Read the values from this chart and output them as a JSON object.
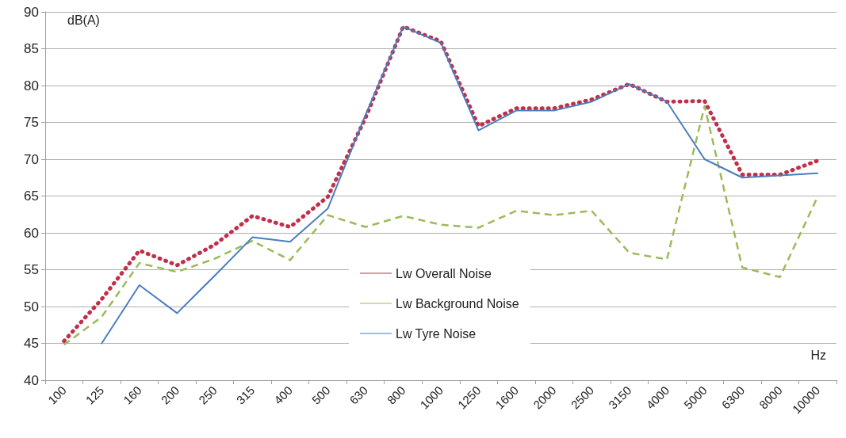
{
  "chart_data": {
    "type": "line",
    "ylabel": "dB(A)",
    "xlabel": "Hz",
    "categories": [
      "100",
      "125",
      "160",
      "200",
      "250",
      "315",
      "400",
      "500",
      "630",
      "800",
      "1000",
      "1250",
      "1600",
      "2000",
      "2500",
      "3150",
      "4000",
      "5000",
      "6300",
      "8000",
      "10000"
    ],
    "ylim": [
      40,
      90
    ],
    "yticks": [
      40,
      45,
      50,
      55,
      60,
      65,
      70,
      75,
      80,
      85,
      90
    ],
    "grid": "y",
    "legend": "bottom",
    "marker": "none",
    "series": [
      {
        "name": "Lw Overall Noise",
        "color": "#c0304a",
        "line_style": "dotted",
        "values": [
          45.3,
          51,
          57.6,
          55.6,
          58.4,
          62.3,
          60.8,
          64.9,
          75.6,
          88,
          86,
          74.5,
          76.9,
          76.9,
          78.1,
          80.2,
          77.8,
          77.9,
          67.9,
          67.9,
          69.8
        ]
      },
      {
        "name": "Lw Background Noise",
        "color": "#9bbb59",
        "line_style": "dashed",
        "values": [
          44.8,
          48.6,
          55.9,
          54.7,
          56.5,
          58.9,
          56.3,
          62.4,
          60.8,
          62.3,
          61.1,
          60.7,
          63,
          62.4,
          63,
          57.3,
          56.4,
          77.2,
          55.3,
          54,
          64.9
        ]
      },
      {
        "name": "Lw Tyre Noise",
        "color": "#4a7ebb",
        "line_style": "solid",
        "values": [
          null,
          45,
          52.9,
          49.1,
          54.2,
          59.4,
          58.8,
          63.3,
          76,
          88,
          85.8,
          73.9,
          76.6,
          76.6,
          77.8,
          80.2,
          77.8,
          70,
          67.5,
          67.8,
          68.1
        ]
      }
    ]
  }
}
